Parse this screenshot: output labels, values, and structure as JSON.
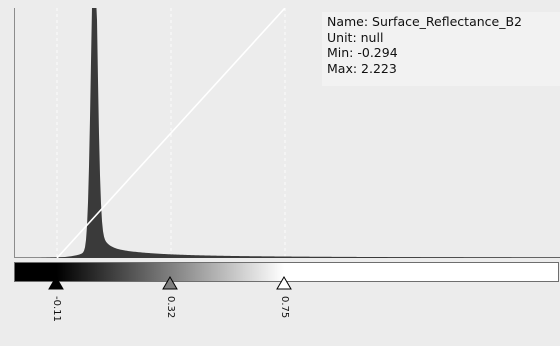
{
  "info": {
    "name_line": "Name: Surface_Reflectance_B2",
    "unit_line": "Unit: null",
    "min_line": "Min: -0.294",
    "max_line": "Max: 2.223"
  },
  "colors": {
    "background": "#ececec",
    "histogram": "#3a3a3a",
    "transfer_line": "#ffffff",
    "marker_lines": "#ffffff",
    "slider_black": "#000000",
    "slider_gray": "#7f7f7f",
    "slider_white": "#ffffff"
  },
  "chart_data": {
    "type": "area",
    "x_range": [
      -0.294,
      2.223
    ],
    "peak_x": 0.03,
    "series": [
      {
        "values": "histogram of band values, sharp peak near 0.03 with long tail to the right"
      }
    ],
    "transfer_function": {
      "from": -0.11,
      "to": 0.75
    }
  },
  "sliders": [
    {
      "value": -0.11,
      "label": "-0.11",
      "color": "#000000"
    },
    {
      "value": 0.32,
      "label": "0.32",
      "color": "#7f7f7f"
    },
    {
      "value": 0.75,
      "label": "0.75",
      "color": "#ffffff"
    }
  ]
}
